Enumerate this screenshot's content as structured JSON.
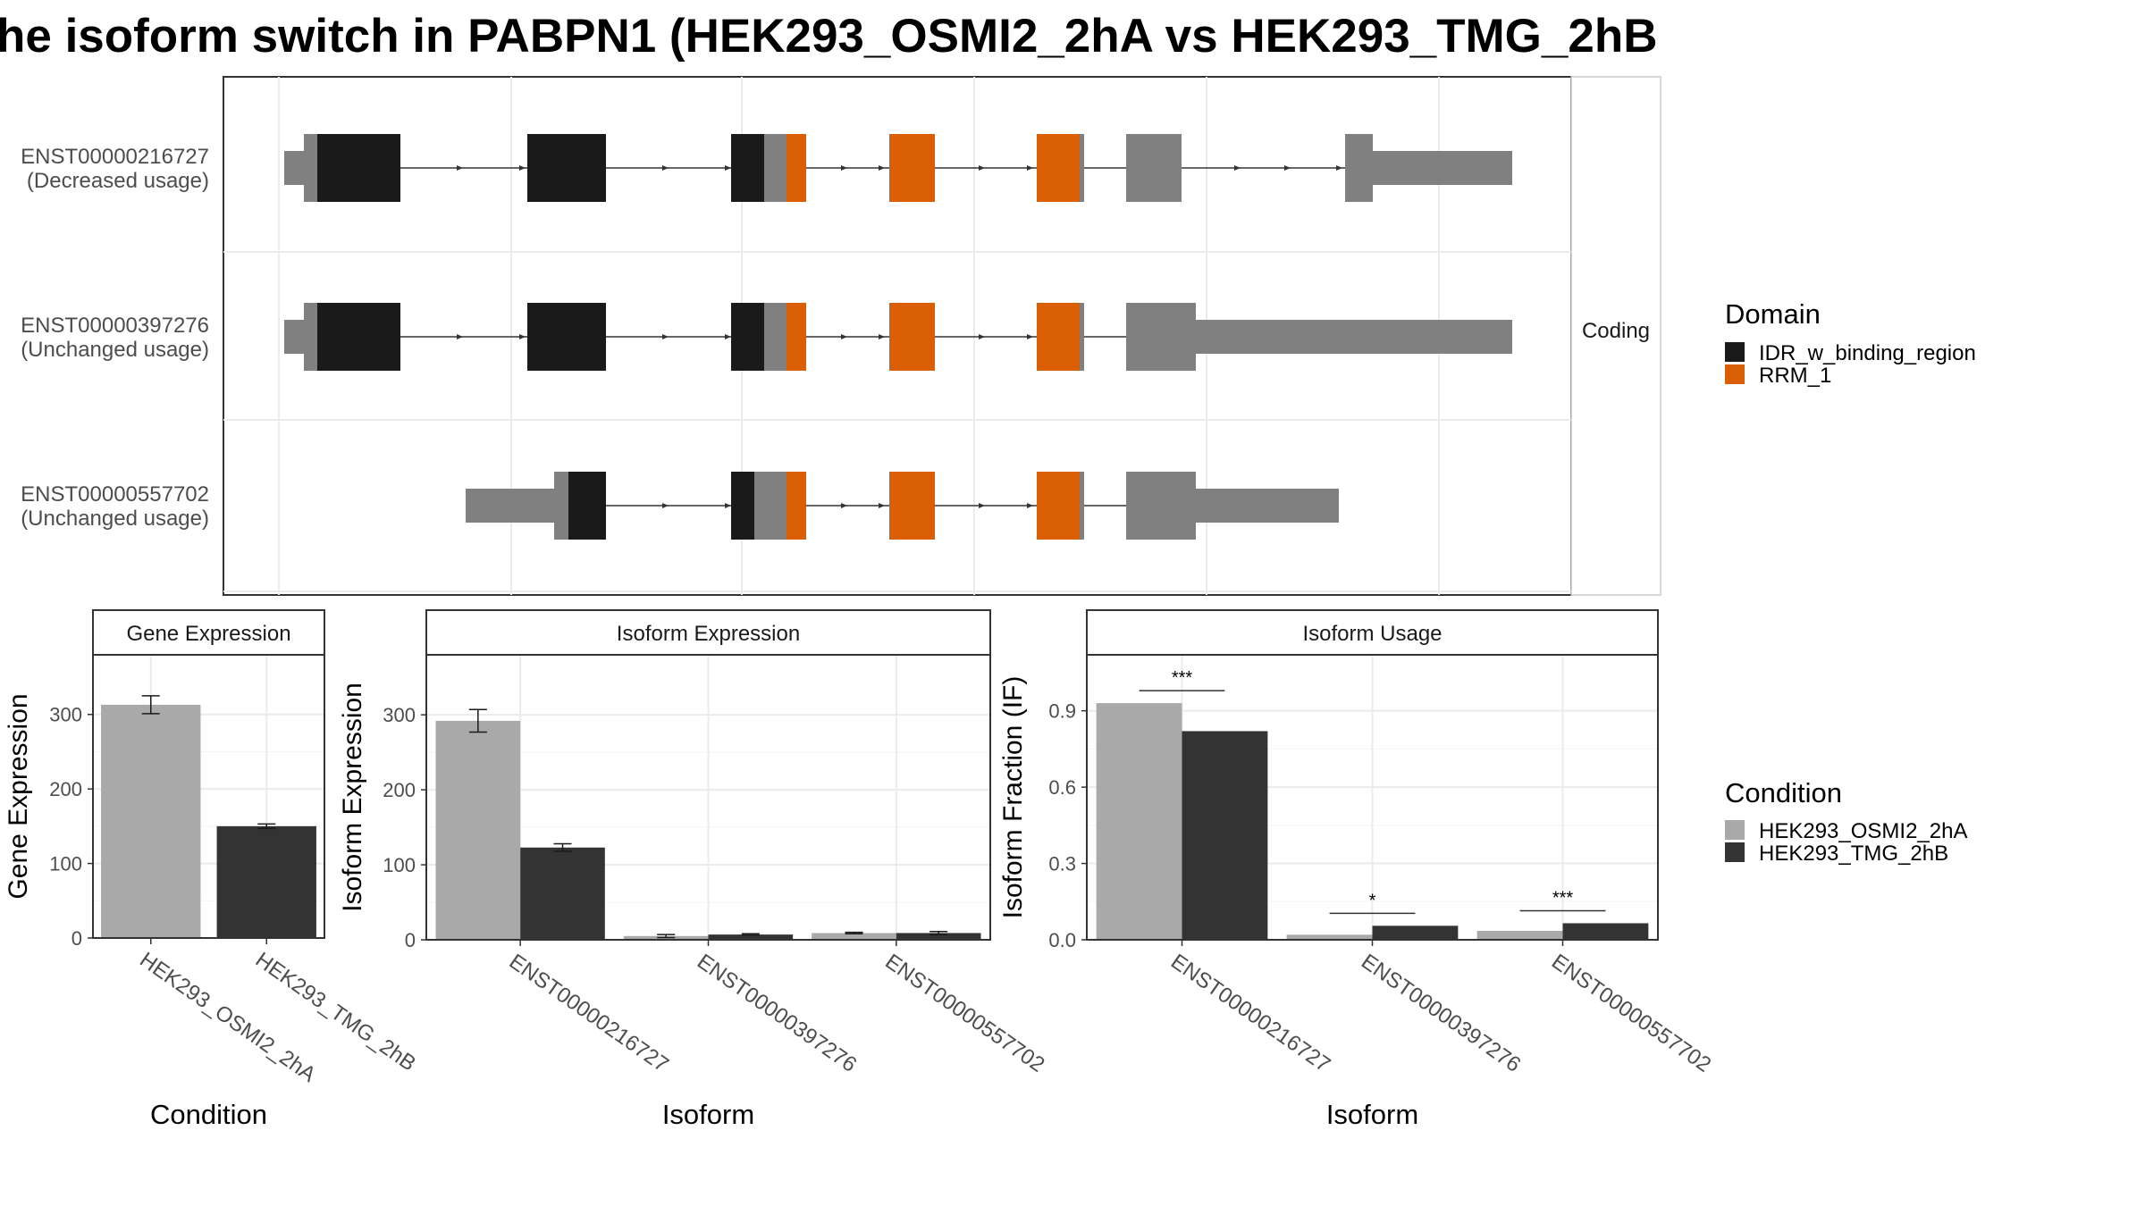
{
  "title": "he isoform switch in PABPN1 (HEK293_OSMI2_2hA vs HEK293_TMG_2hB",
  "colors": {
    "idr": "#1a1a1a",
    "rrm": "#d95f02",
    "utr": "#808080",
    "cond1": "#a9a9a9",
    "cond2": "#333333",
    "grid": "#ebebeb",
    "strip_bg": "#ffffff"
  },
  "structure": {
    "strip_label": "Coding",
    "transcripts": [
      {
        "name": "ENST00000216727",
        "usage": "(Decreased usage)"
      },
      {
        "name": "ENST00000397276",
        "usage": "(Unchanged usage)"
      },
      {
        "name": "ENST00000557702",
        "usage": "(Unchanged usage)"
      }
    ],
    "legend": {
      "title": "Domain",
      "items": [
        {
          "label": "IDR_w_binding_region",
          "color": "#1a1a1a"
        },
        {
          "label": "RRM_1",
          "color": "#d95f02"
        }
      ]
    }
  },
  "condition_legend": {
    "title": "Condition",
    "items": [
      {
        "label": "HEK293_OSMI2_2hA",
        "color": "#a9a9a9"
      },
      {
        "label": "HEK293_TMG_2hB",
        "color": "#333333"
      }
    ]
  },
  "chart_data": [
    {
      "type": "bar",
      "title": "Gene Expression",
      "xlabel": "Condition",
      "ylabel": "Gene Expression",
      "categories": [
        "HEK293_OSMI2_2hA",
        "HEK293_TMG_2hB"
      ],
      "values": [
        313,
        150
      ],
      "errors": [
        12,
        3
      ],
      "ylim": [
        0,
        380
      ],
      "yticks": [
        0,
        100,
        200,
        300
      ],
      "ytick_labels": [
        "0",
        "100",
        "200",
        "300"
      ]
    },
    {
      "type": "bar",
      "title": "Isoform Expression",
      "xlabel": "Isoform",
      "ylabel": "Isoform Expression",
      "categories": [
        "ENST00000216727",
        "ENST00000397276",
        "ENST00000557702"
      ],
      "series": [
        {
          "name": "HEK293_OSMI2_2hA",
          "values": [
            292,
            5,
            9
          ],
          "errors": [
            15,
            2,
            1
          ]
        },
        {
          "name": "HEK293_TMG_2hB",
          "values": [
            123,
            7,
            9
          ],
          "errors": [
            5,
            1,
            2
          ]
        }
      ],
      "ylim": [
        0,
        380
      ],
      "yticks": [
        0,
        100,
        200,
        300
      ],
      "ytick_labels": [
        "0",
        "100",
        "200",
        "300"
      ]
    },
    {
      "type": "bar",
      "title": "Isoform Usage",
      "xlabel": "Isoform",
      "ylabel": "Isoform Fraction (IF)",
      "categories": [
        "ENST00000216727",
        "ENST00000397276",
        "ENST00000557702"
      ],
      "series": [
        {
          "name": "HEK293_OSMI2_2hA",
          "values": [
            0.93,
            0.02,
            0.035
          ]
        },
        {
          "name": "HEK293_TMG_2hB",
          "values": [
            0.82,
            0.055,
            0.065
          ]
        }
      ],
      "significance": [
        "***",
        "*",
        "***"
      ],
      "ylim": [
        0,
        1.12
      ],
      "yticks": [
        0,
        0.3,
        0.6,
        0.9
      ],
      "ytick_labels": [
        "0.0",
        "0.3",
        "0.6",
        "0.9"
      ]
    }
  ]
}
